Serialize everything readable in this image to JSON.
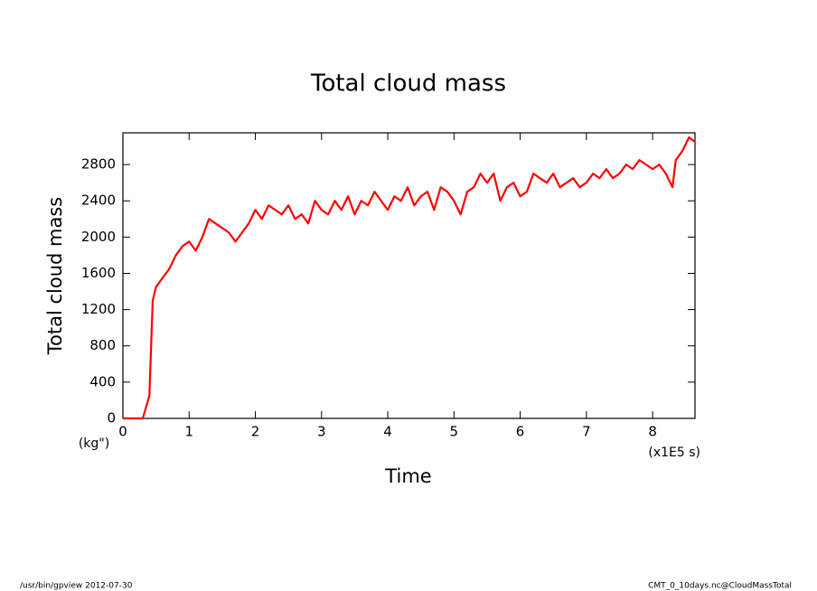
{
  "chart_data": {
    "type": "line",
    "title": "Total cloud mass",
    "xlabel": "Time",
    "ylabel": "Total cloud mass",
    "x_unit": "(x1E5 s)",
    "y_unit": "(kg\")",
    "x": [
      0,
      0.3,
      0.4,
      0.45,
      0.5,
      0.6,
      0.7,
      0.8,
      0.9,
      1.0,
      1.1,
      1.2,
      1.3,
      1.4,
      1.5,
      1.6,
      1.7,
      1.8,
      1.9,
      2.0,
      2.1,
      2.2,
      2.3,
      2.4,
      2.5,
      2.6,
      2.7,
      2.8,
      2.9,
      3.0,
      3.1,
      3.2,
      3.3,
      3.4,
      3.5,
      3.6,
      3.7,
      3.8,
      3.9,
      4.0,
      4.1,
      4.2,
      4.3,
      4.4,
      4.5,
      4.6,
      4.7,
      4.8,
      4.9,
      5.0,
      5.1,
      5.2,
      5.3,
      5.4,
      5.5,
      5.6,
      5.7,
      5.8,
      5.9,
      6.0,
      6.1,
      6.2,
      6.3,
      6.4,
      6.5,
      6.6,
      6.7,
      6.8,
      6.9,
      7.0,
      7.1,
      7.2,
      7.3,
      7.4,
      7.5,
      7.6,
      7.7,
      7.8,
      7.9,
      8.0,
      8.1,
      8.2,
      8.3,
      8.35,
      8.45,
      8.55,
      8.64
    ],
    "series": [
      {
        "name": "Total cloud mass",
        "color": "#ff0000",
        "values": [
          0,
          0,
          250,
          1300,
          1450,
          1550,
          1650,
          1800,
          1900,
          1950,
          1850,
          2000,
          2200,
          2150,
          2100,
          2050,
          1950,
          2050,
          2150,
          2300,
          2200,
          2350,
          2300,
          2250,
          2350,
          2200,
          2250,
          2150,
          2400,
          2300,
          2250,
          2400,
          2300,
          2450,
          2250,
          2400,
          2350,
          2500,
          2400,
          2300,
          2450,
          2400,
          2550,
          2350,
          2450,
          2500,
          2300,
          2550,
          2500,
          2400,
          2250,
          2500,
          2550,
          2700,
          2600,
          2700,
          2400,
          2550,
          2600,
          2450,
          2500,
          2700,
          2650,
          2600,
          2700,
          2550,
          2600,
          2650,
          2550,
          2600,
          2700,
          2650,
          2750,
          2650,
          2700,
          2800,
          2750,
          2850,
          2800,
          2750,
          2800,
          2700,
          2550,
          2850,
          2950,
          3100,
          3050
        ]
      }
    ],
    "xlim": [
      0,
      8.64
    ],
    "ylim": [
      0,
      3150
    ],
    "xticks": [
      0,
      1,
      2,
      3,
      4,
      5,
      6,
      7,
      8
    ],
    "yticks": [
      0,
      400,
      800,
      1200,
      1600,
      2000,
      2400,
      2800
    ]
  },
  "footer": {
    "left": "/usr/bin/gpview  2012-07-30",
    "right": "CMT_0_10days.nc@CloudMassTotal"
  }
}
